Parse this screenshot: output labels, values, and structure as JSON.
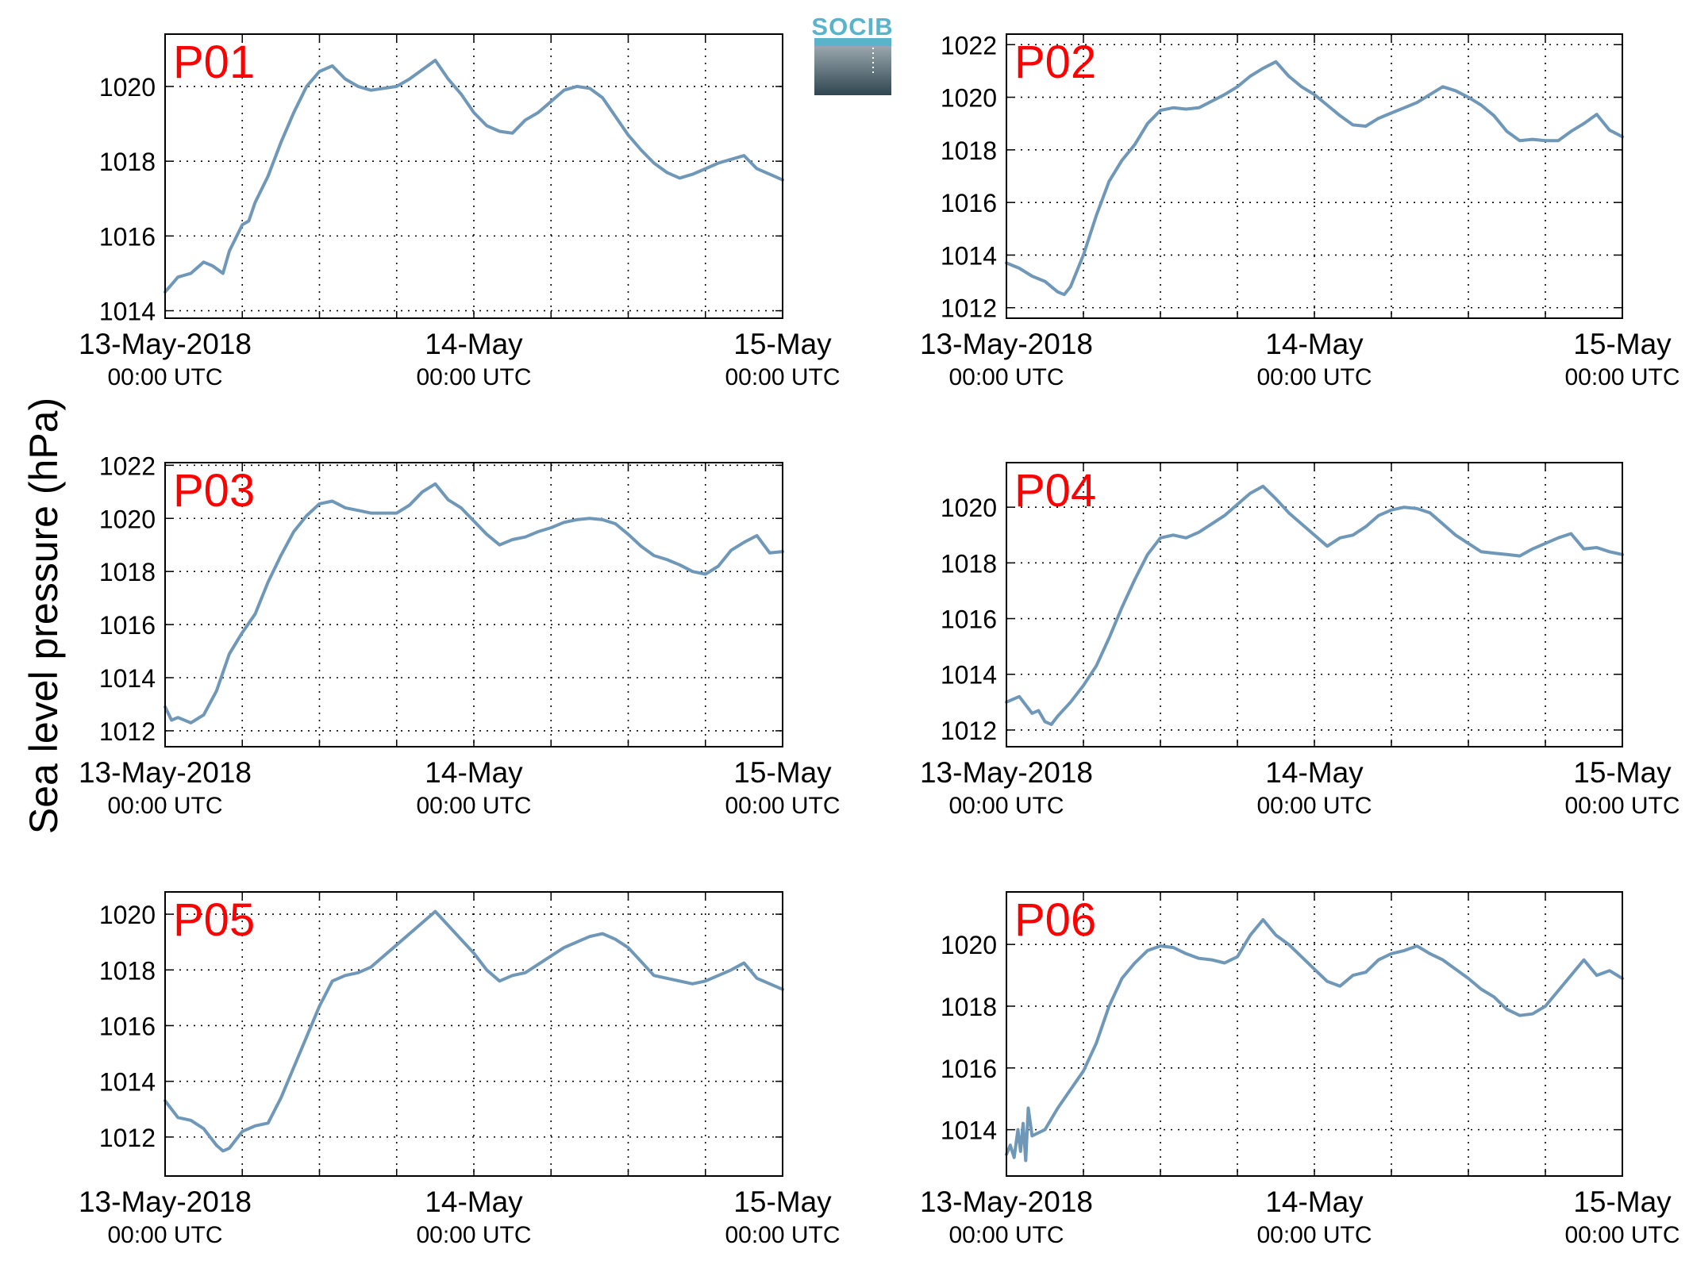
{
  "logo": {
    "text": "SOCIB",
    "top_color": "#59b3c9",
    "bottom_color": "#2f4650"
  },
  "ylabel": "Sea level pressure (hPa)",
  "line_color": "#6f97b8",
  "label_color": "#ff0000",
  "chart_data": [
    {
      "type": "line",
      "name": "P01",
      "xlim": [
        0,
        48
      ],
      "ylim": [
        1013.8,
        1021.4
      ],
      "yticks": [
        1014,
        1016,
        1018,
        1020
      ],
      "xticks": [
        0,
        24,
        48
      ],
      "xticklabels": [
        [
          "13-May-2018",
          "00:00 UTC"
        ],
        [
          "14-May",
          "00:00 UTC"
        ],
        [
          "15-May",
          "00:00 UTC"
        ]
      ],
      "x": [
        0,
        1,
        2,
        3,
        3.7,
        4.5,
        5,
        6,
        6.5,
        7,
        8,
        9,
        10,
        11,
        12,
        13,
        14,
        15,
        16,
        17,
        18,
        19,
        20,
        21,
        22,
        23,
        24,
        25,
        26,
        27,
        28,
        29,
        30,
        31,
        32,
        33,
        34,
        35,
        36,
        37,
        38,
        39,
        40,
        41,
        42,
        43,
        44,
        45,
        46,
        47,
        48
      ],
      "y": [
        1014.5,
        1014.9,
        1015.0,
        1015.3,
        1015.2,
        1015.0,
        1015.6,
        1016.3,
        1016.4,
        1016.9,
        1017.6,
        1018.5,
        1019.3,
        1020.0,
        1020.4,
        1020.55,
        1020.2,
        1020.0,
        1019.9,
        1019.95,
        1020.0,
        1020.2,
        1020.45,
        1020.7,
        1020.2,
        1019.8,
        1019.3,
        1018.95,
        1018.8,
        1018.75,
        1019.1,
        1019.3,
        1019.6,
        1019.9,
        1020.0,
        1019.95,
        1019.7,
        1019.2,
        1018.7,
        1018.3,
        1017.95,
        1017.7,
        1017.55,
        1017.65,
        1017.8,
        1017.95,
        1018.05,
        1018.15,
        1017.8,
        1017.65,
        1017.5
      ]
    },
    {
      "type": "line",
      "name": "P02",
      "xlim": [
        0,
        48
      ],
      "ylim": [
        1011.6,
        1022.4
      ],
      "yticks": [
        1012,
        1014,
        1016,
        1018,
        1020,
        1022
      ],
      "xticks": [
        0,
        24,
        48
      ],
      "xticklabels": [
        [
          "13-May-2018",
          "00:00 UTC"
        ],
        [
          "14-May",
          "00:00 UTC"
        ],
        [
          "15-May",
          "00:00 UTC"
        ]
      ],
      "x": [
        0,
        1,
        2,
        3,
        4,
        4.5,
        5,
        6,
        7,
        8,
        9,
        10,
        11,
        12,
        13,
        14,
        15,
        16,
        17,
        18,
        19,
        20,
        21,
        22,
        23,
        24,
        25,
        26,
        27,
        28,
        29,
        30,
        31,
        32,
        33,
        34,
        35,
        36,
        37,
        38,
        39,
        40,
        41,
        42,
        43,
        44,
        45,
        46,
        47,
        48
      ],
      "y": [
        1013.7,
        1013.5,
        1013.2,
        1013.0,
        1012.6,
        1012.5,
        1012.8,
        1014.0,
        1015.5,
        1016.8,
        1017.6,
        1018.2,
        1019.0,
        1019.5,
        1019.6,
        1019.55,
        1019.6,
        1019.85,
        1020.1,
        1020.4,
        1020.8,
        1021.1,
        1021.35,
        1020.8,
        1020.4,
        1020.1,
        1019.7,
        1019.3,
        1018.95,
        1018.9,
        1019.2,
        1019.4,
        1019.6,
        1019.8,
        1020.1,
        1020.4,
        1020.25,
        1020.0,
        1019.7,
        1019.3,
        1018.7,
        1018.35,
        1018.4,
        1018.35,
        1018.35,
        1018.7,
        1019.0,
        1019.35,
        1018.75,
        1018.5
      ]
    },
    {
      "type": "line",
      "name": "P03",
      "xlim": [
        0,
        48
      ],
      "ylim": [
        1011.4,
        1022.1
      ],
      "yticks": [
        1012,
        1014,
        1016,
        1018,
        1020,
        1022
      ],
      "xticks": [
        0,
        24,
        48
      ],
      "xticklabels": [
        [
          "13-May-2018",
          "00:00 UTC"
        ],
        [
          "14-May",
          "00:00 UTC"
        ],
        [
          "15-May",
          "00:00 UTC"
        ]
      ],
      "x": [
        0,
        0.5,
        1,
        2,
        3,
        4,
        5,
        6,
        7,
        8,
        9,
        10,
        11,
        12,
        13,
        14,
        15,
        16,
        17,
        18,
        19,
        20,
        21,
        22,
        23,
        24,
        25,
        26,
        27,
        28,
        29,
        30,
        31,
        32,
        33,
        34,
        35,
        36,
        37,
        38,
        39,
        40,
        41,
        42,
        43,
        44,
        45,
        46,
        47,
        48
      ],
      "y": [
        1012.9,
        1012.4,
        1012.5,
        1012.3,
        1012.6,
        1013.5,
        1014.9,
        1015.7,
        1016.4,
        1017.6,
        1018.6,
        1019.5,
        1020.1,
        1020.55,
        1020.65,
        1020.4,
        1020.3,
        1020.2,
        1020.2,
        1020.2,
        1020.5,
        1021.0,
        1021.3,
        1020.7,
        1020.4,
        1019.9,
        1019.4,
        1019.0,
        1019.2,
        1019.3,
        1019.5,
        1019.65,
        1019.85,
        1019.95,
        1020.0,
        1019.95,
        1019.8,
        1019.4,
        1018.95,
        1018.6,
        1018.45,
        1018.25,
        1018.0,
        1017.9,
        1018.2,
        1018.8,
        1019.1,
        1019.35,
        1018.7,
        1018.75
      ]
    },
    {
      "type": "line",
      "name": "P04",
      "xlim": [
        0,
        48
      ],
      "ylim": [
        1011.4,
        1021.6
      ],
      "yticks": [
        1012,
        1014,
        1016,
        1018,
        1020
      ],
      "xticks": [
        0,
        24,
        48
      ],
      "xticklabels": [
        [
          "13-May-2018",
          "00:00 UTC"
        ],
        [
          "14-May",
          "00:00 UTC"
        ],
        [
          "15-May",
          "00:00 UTC"
        ]
      ],
      "x": [
        0,
        1,
        2,
        2.5,
        3,
        3.5,
        4,
        5,
        6,
        7,
        8,
        9,
        10,
        11,
        12,
        13,
        14,
        15,
        16,
        17,
        18,
        19,
        20,
        21,
        22,
        23,
        24,
        25,
        26,
        27,
        28,
        29,
        30,
        31,
        32,
        33,
        34,
        35,
        36,
        37,
        38,
        39,
        40,
        41,
        42,
        43,
        44,
        45,
        46,
        47,
        48
      ],
      "y": [
        1013.0,
        1013.2,
        1012.6,
        1012.7,
        1012.3,
        1012.2,
        1012.5,
        1013.0,
        1013.6,
        1014.3,
        1015.3,
        1016.4,
        1017.4,
        1018.3,
        1018.9,
        1019.0,
        1018.9,
        1019.1,
        1019.4,
        1019.7,
        1020.1,
        1020.5,
        1020.75,
        1020.3,
        1019.8,
        1019.4,
        1019.0,
        1018.6,
        1018.9,
        1019.0,
        1019.3,
        1019.7,
        1019.9,
        1020.0,
        1019.95,
        1019.8,
        1019.4,
        1019.0,
        1018.7,
        1018.4,
        1018.35,
        1018.3,
        1018.25,
        1018.5,
        1018.7,
        1018.9,
        1019.05,
        1018.5,
        1018.55,
        1018.4,
        1018.3
      ]
    },
    {
      "type": "line",
      "name": "P05",
      "xlim": [
        0,
        48
      ],
      "ylim": [
        1010.6,
        1020.8
      ],
      "yticks": [
        1012,
        1014,
        1016,
        1018,
        1020
      ],
      "xticks": [
        0,
        24,
        48
      ],
      "xticklabels": [
        [
          "13-May-2018",
          "00:00 UTC"
        ],
        [
          "14-May",
          "00:00 UTC"
        ],
        [
          "15-May",
          "00:00 UTC"
        ]
      ],
      "x": [
        0,
        1,
        2,
        3,
        3.5,
        4,
        4.5,
        5,
        6,
        7,
        8,
        9,
        10,
        11,
        12,
        13,
        14,
        15,
        16,
        17,
        18,
        19,
        20,
        21,
        22,
        23,
        24,
        25,
        26,
        27,
        28,
        29,
        30,
        31,
        32,
        33,
        34,
        35,
        36,
        37,
        38,
        39,
        40,
        41,
        42,
        43,
        44,
        45,
        46,
        47,
        48
      ],
      "y": [
        1013.3,
        1012.7,
        1012.6,
        1012.3,
        1012.0,
        1011.7,
        1011.5,
        1011.6,
        1012.2,
        1012.4,
        1012.5,
        1013.4,
        1014.5,
        1015.6,
        1016.7,
        1017.6,
        1017.8,
        1017.9,
        1018.1,
        1018.5,
        1018.9,
        1019.3,
        1019.7,
        1020.1,
        1019.6,
        1019.1,
        1018.6,
        1018.0,
        1017.6,
        1017.8,
        1017.9,
        1018.2,
        1018.5,
        1018.8,
        1019.0,
        1019.2,
        1019.3,
        1019.1,
        1018.8,
        1018.3,
        1017.8,
        1017.7,
        1017.6,
        1017.5,
        1017.6,
        1017.8,
        1018.0,
        1018.25,
        1017.7,
        1017.5,
        1017.3
      ]
    },
    {
      "type": "line",
      "name": "P06",
      "xlim": [
        0,
        48
      ],
      "ylim": [
        1012.5,
        1021.7
      ],
      "yticks": [
        1014,
        1016,
        1018,
        1020
      ],
      "xticks": [
        0,
        24,
        48
      ],
      "xticklabels": [
        [
          "13-May-2018",
          "00:00 UTC"
        ],
        [
          "14-May",
          "00:00 UTC"
        ],
        [
          "15-May",
          "00:00 UTC"
        ]
      ],
      "x": [
        0,
        0.3,
        0.6,
        0.9,
        1.1,
        1.3,
        1.5,
        1.7,
        2,
        2.5,
        3,
        4,
        5,
        6,
        7,
        8,
        9,
        10,
        11,
        12,
        13,
        14,
        15,
        16,
        17,
        18,
        19,
        20,
        21,
        22,
        23,
        24,
        25,
        26,
        27,
        28,
        29,
        30,
        31,
        32,
        33,
        34,
        35,
        36,
        37,
        38,
        39,
        40,
        41,
        42,
        43,
        44,
        45,
        46,
        47,
        48
      ],
      "y": [
        1013.2,
        1013.5,
        1013.1,
        1014.0,
        1013.3,
        1014.2,
        1013.0,
        1014.7,
        1013.8,
        1013.9,
        1014.0,
        1014.7,
        1015.3,
        1015.9,
        1016.8,
        1018.0,
        1018.9,
        1019.4,
        1019.8,
        1019.95,
        1019.9,
        1019.7,
        1019.55,
        1019.5,
        1019.4,
        1019.6,
        1020.3,
        1020.8,
        1020.3,
        1020.0,
        1019.6,
        1019.2,
        1018.8,
        1018.65,
        1019.0,
        1019.1,
        1019.5,
        1019.7,
        1019.8,
        1019.95,
        1019.7,
        1019.5,
        1019.2,
        1018.9,
        1018.55,
        1018.3,
        1017.9,
        1017.7,
        1017.75,
        1018.0,
        1018.5,
        1019.0,
        1019.5,
        1019.0,
        1019.15,
        1018.9
      ]
    }
  ]
}
